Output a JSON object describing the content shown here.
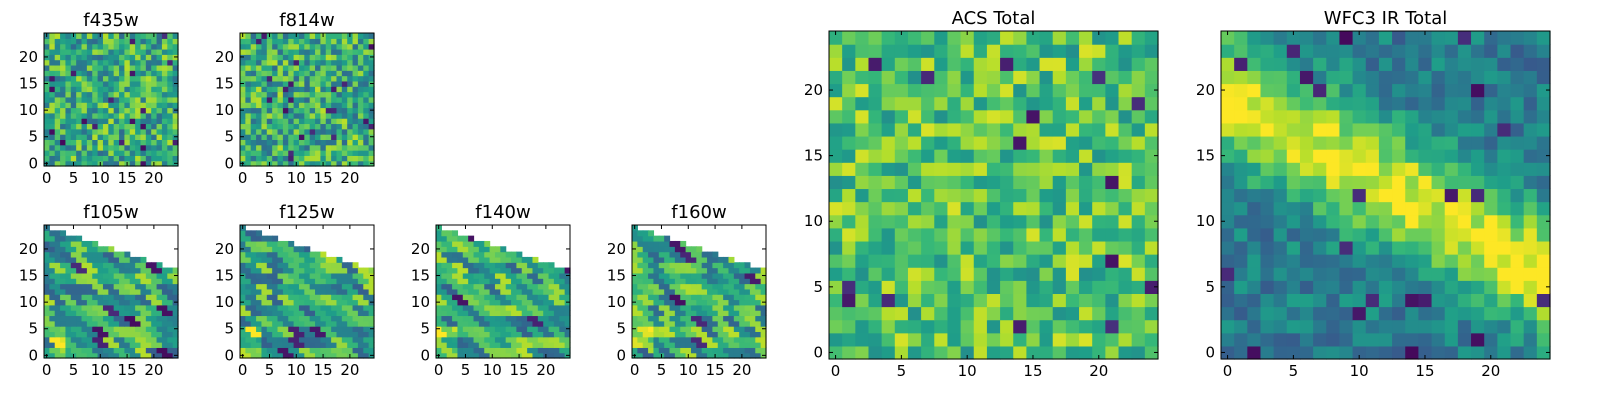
{
  "colormap": "viridis",
  "colors": {
    "viridis_low": "#440154",
    "viridis_mid": "#21918c",
    "viridis_high": "#fde725",
    "axes": "#000000",
    "background": "#ffffff"
  },
  "chart_data": [
    {
      "id": "f435w",
      "type": "heatmap",
      "title": "f435w",
      "size": 25,
      "xlim": [
        0,
        24
      ],
      "ylim": [
        0,
        24
      ],
      "xticks": [
        "0",
        "5",
        "10",
        "15",
        "20"
      ],
      "yticks": [
        "0",
        "5",
        "10",
        "15",
        "20"
      ],
      "pattern": "noise",
      "seed": 11,
      "mask": "none"
    },
    {
      "id": "f814w",
      "type": "heatmap",
      "title": "f814w",
      "size": 25,
      "xlim": [
        0,
        24
      ],
      "ylim": [
        0,
        24
      ],
      "xticks": [
        "0",
        "5",
        "10",
        "15",
        "20"
      ],
      "yticks": [
        "0",
        "5",
        "10",
        "15",
        "20"
      ],
      "pattern": "noise",
      "seed": 23,
      "mask": "none"
    },
    {
      "id": "f105w",
      "type": "heatmap",
      "title": "f105w",
      "size": 25,
      "xlim": [
        0,
        24
      ],
      "ylim": [
        0,
        24
      ],
      "xticks": [
        "0",
        "5",
        "10",
        "15",
        "20"
      ],
      "yticks": [
        "0",
        "5",
        "10",
        "15",
        "20"
      ],
      "pattern": "blocky",
      "seed": 37,
      "mask": "upper-left"
    },
    {
      "id": "f125w",
      "type": "heatmap",
      "title": "f125w",
      "size": 25,
      "xlim": [
        0,
        24
      ],
      "ylim": [
        0,
        24
      ],
      "xticks": [
        "0",
        "5",
        "10",
        "15",
        "20"
      ],
      "yticks": [
        "0",
        "5",
        "10",
        "15",
        "20"
      ],
      "pattern": "blocky",
      "seed": 41,
      "mask": "upper-left"
    },
    {
      "id": "f140w",
      "type": "heatmap",
      "title": "f140w",
      "size": 25,
      "xlim": [
        0,
        24
      ],
      "ylim": [
        0,
        24
      ],
      "xticks": [
        "0",
        "5",
        "10",
        "15",
        "20"
      ],
      "yticks": [
        "0",
        "5",
        "10",
        "15",
        "20"
      ],
      "pattern": "blocky",
      "seed": 53,
      "mask": "upper-left"
    },
    {
      "id": "f160w",
      "type": "heatmap",
      "title": "f160w",
      "size": 25,
      "xlim": [
        0,
        24
      ],
      "ylim": [
        0,
        24
      ],
      "xticks": [
        "0",
        "5",
        "10",
        "15",
        "20"
      ],
      "yticks": [
        "0",
        "5",
        "10",
        "15",
        "20"
      ],
      "pattern": "blocky",
      "seed": 67,
      "mask": "upper-left"
    },
    {
      "id": "acs",
      "type": "heatmap",
      "title": "ACS Total",
      "size": 25,
      "xlim": [
        0,
        24
      ],
      "ylim": [
        0,
        24
      ],
      "xticks": [
        "0",
        "5",
        "10",
        "15",
        "20"
      ],
      "yticks": [
        "0",
        "5",
        "10",
        "15",
        "20"
      ],
      "pattern": "noise-bright",
      "seed": 79,
      "mask": "none"
    },
    {
      "id": "wfc3",
      "type": "heatmap",
      "title": "WFC3 IR Total",
      "size": 25,
      "xlim": [
        0,
        24
      ],
      "ylim": [
        0,
        24
      ],
      "xticks": [
        "0",
        "5",
        "10",
        "15",
        "20"
      ],
      "yticks": [
        "0",
        "5",
        "10",
        "15",
        "20"
      ],
      "pattern": "diagonal-band",
      "seed": 97,
      "mask": "none"
    }
  ]
}
